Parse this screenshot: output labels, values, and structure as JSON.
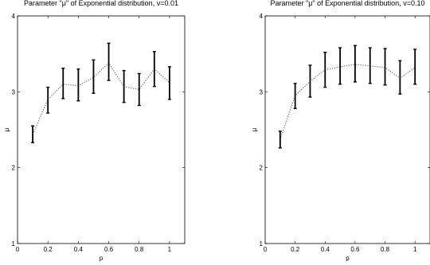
{
  "chart_data": [
    {
      "type": "line",
      "title": "Parameter \"μ\" of Exponential distribution, ν=0.01",
      "xlabel": "p",
      "ylabel": "μ",
      "xlim": [
        0,
        1.1
      ],
      "ylim": [
        1,
        4
      ],
      "x_ticks": [
        "0",
        "0.2",
        "0.4",
        "0.6",
        "0.8",
        "1"
      ],
      "y_ticks": [
        "1",
        "2",
        "3",
        "4"
      ],
      "grid": false,
      "series": [
        {
          "x": [
            0.1,
            0.2,
            0.3,
            0.4,
            0.5,
            0.6,
            0.7,
            0.8,
            0.9,
            1.0
          ],
          "mean": [
            2.44,
            2.9,
            3.1,
            3.08,
            3.19,
            3.38,
            3.07,
            3.03,
            3.3,
            3.12
          ],
          "lower": [
            2.33,
            2.72,
            2.91,
            2.88,
            2.98,
            3.15,
            2.86,
            2.82,
            3.07,
            2.9
          ],
          "upper": [
            2.55,
            3.06,
            3.31,
            3.3,
            3.42,
            3.64,
            3.28,
            3.24,
            3.53,
            3.33
          ]
        }
      ]
    },
    {
      "type": "line",
      "title": "Parameter \"μ\" of Exponential distribution, ν=0.10",
      "xlabel": "p",
      "ylabel": "μ",
      "xlim": [
        0,
        1.1
      ],
      "ylim": [
        1,
        4
      ],
      "x_ticks": [
        "0",
        "0.2",
        "0.4",
        "0.6",
        "0.8",
        "1"
      ],
      "y_ticks": [
        "1",
        "2",
        "3",
        "4"
      ],
      "grid": false,
      "series": [
        {
          "x": [
            0.1,
            0.2,
            0.3,
            0.4,
            0.5,
            0.6,
            0.7,
            0.8,
            0.9,
            1.0
          ],
          "mean": [
            2.37,
            2.95,
            3.14,
            3.29,
            3.33,
            3.36,
            3.34,
            3.32,
            3.18,
            3.32
          ],
          "lower": [
            2.26,
            2.78,
            2.93,
            3.06,
            3.1,
            3.13,
            3.11,
            3.09,
            2.97,
            3.1
          ],
          "upper": [
            2.48,
            3.11,
            3.35,
            3.52,
            3.58,
            3.61,
            3.58,
            3.57,
            3.41,
            3.56
          ]
        }
      ]
    }
  ]
}
